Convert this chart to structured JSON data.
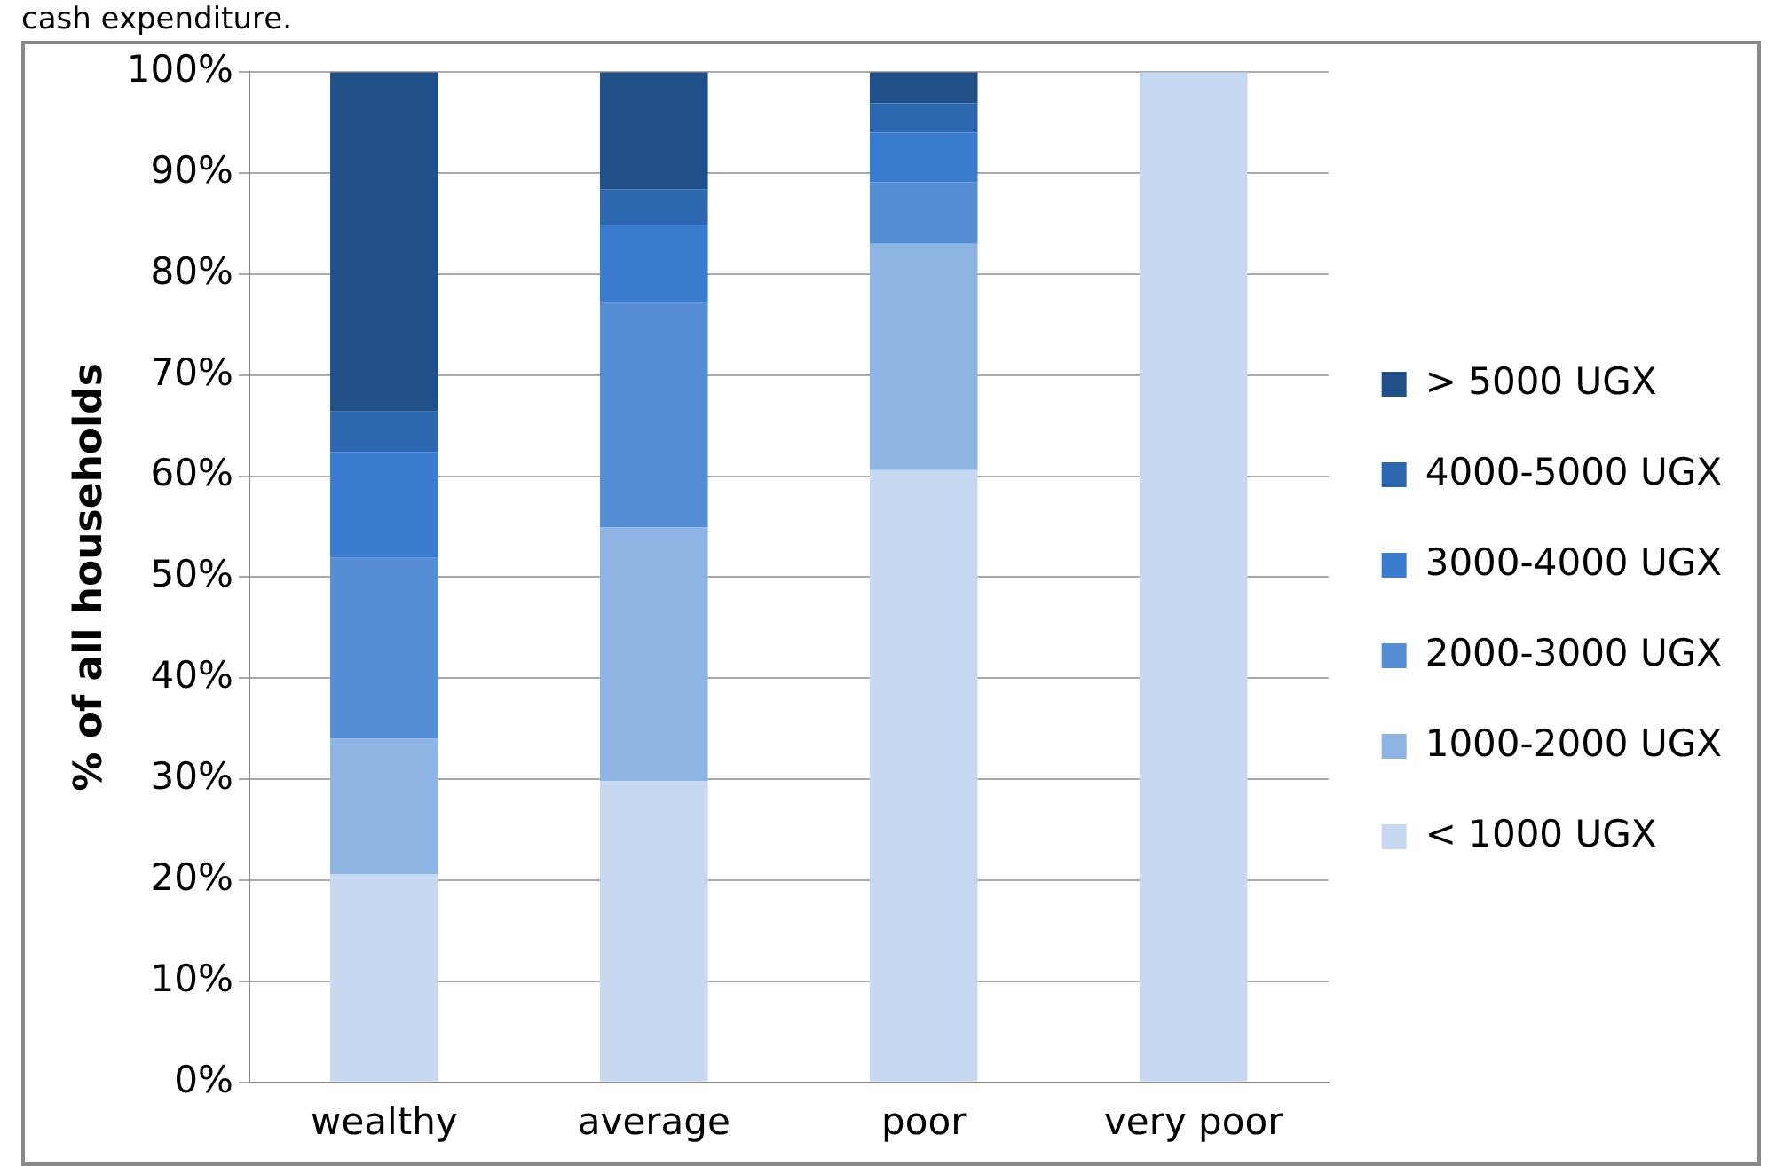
{
  "chart_data": {
    "type": "bar",
    "stacked": true,
    "ylabel": "% of all households",
    "annotations": [
      "cash expenditure."
    ],
    "categories": [
      "wealthy",
      "average",
      "poor",
      "very poor"
    ],
    "series": [
      {
        "name": "< 1000 UGX",
        "color": "#c6d9f0",
        "values": [
          20.6,
          29.8,
          60.6,
          100
        ]
      },
      {
        "name": "1000-2000 UGX",
        "color": "#8eb4e3",
        "values": [
          13.4,
          25.1,
          22.4,
          0
        ]
      },
      {
        "name": "2000-3000 UGX",
        "color": "#558ed5",
        "values": [
          17.9,
          22.3,
          6.1,
          0
        ]
      },
      {
        "name": "3000-4000 UGX",
        "color": "#3a7dce",
        "values": [
          10.5,
          7.7,
          4.9,
          0
        ]
      },
      {
        "name": "4000-5000 UGX",
        "color": "#2c67b0",
        "values": [
          4.0,
          3.5,
          2.9,
          0
        ]
      },
      {
        "name": "> 5000 UGX",
        "color": "#214f87",
        "values": [
          33.6,
          11.6,
          3.1,
          0
        ]
      }
    ],
    "ylim": [
      0,
      100
    ],
    "yticks": [
      {
        "value": 0,
        "label": "0%"
      },
      {
        "value": 10,
        "label": "10%"
      },
      {
        "value": 20,
        "label": "20%"
      },
      {
        "value": 30,
        "label": "30%"
      },
      {
        "value": 40,
        "label": "40%"
      },
      {
        "value": 50,
        "label": "50%"
      },
      {
        "value": 60,
        "label": "60%"
      },
      {
        "value": 70,
        "label": "70%"
      },
      {
        "value": 80,
        "label": "80%"
      },
      {
        "value": 90,
        "label": "90%"
      },
      {
        "value": 100,
        "label": "100%"
      }
    ],
    "grid": "y",
    "legend": "right"
  }
}
